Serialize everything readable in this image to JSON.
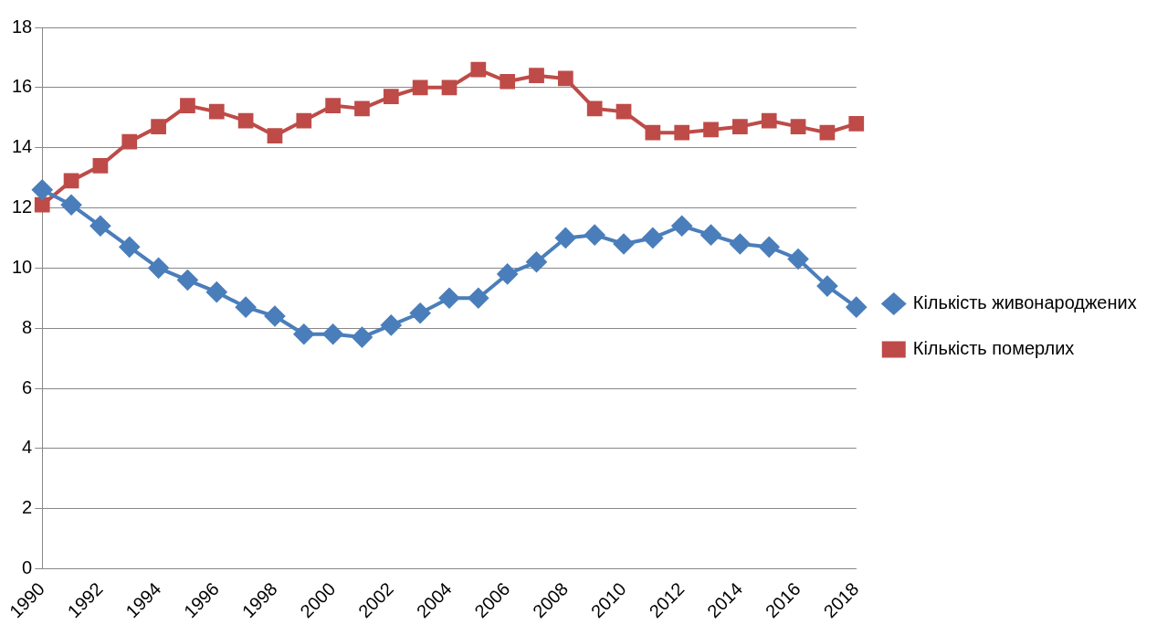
{
  "chart_data": {
    "type": "line",
    "categories": [
      "1990",
      null,
      "1992",
      null,
      "1994",
      null,
      "1996",
      null,
      "1998",
      null,
      "2000",
      null,
      "2002",
      null,
      "2004",
      null,
      "2006",
      null,
      "2008",
      null,
      "2010",
      null,
      "2012",
      null,
      "2014",
      null,
      "2016",
      null,
      "2018"
    ],
    "series": [
      {
        "name": "Кількість живонароджених",
        "color": "#4a7ebb",
        "marker": "diamond",
        "values": [
          12.6,
          12.1,
          11.4,
          10.7,
          10.0,
          9.6,
          9.2,
          8.7,
          8.4,
          7.8,
          7.8,
          7.7,
          8.1,
          8.5,
          9.0,
          9.0,
          9.8,
          10.2,
          11.0,
          11.1,
          10.8,
          11.0,
          11.4,
          11.1,
          10.8,
          10.7,
          10.3,
          9.4,
          8.7
        ]
      },
      {
        "name": "Кількість померлих",
        "color": "#be4b48",
        "marker": "square",
        "values": [
          12.1,
          12.9,
          13.4,
          14.2,
          14.7,
          15.4,
          15.2,
          14.9,
          14.4,
          14.9,
          15.4,
          15.3,
          15.7,
          16.0,
          16.0,
          16.6,
          16.2,
          16.4,
          16.3,
          15.3,
          15.2,
          14.5,
          14.5,
          14.6,
          14.7,
          14.9,
          14.7,
          14.5,
          14.8
        ]
      }
    ],
    "ylim": [
      0,
      18
    ],
    "yticks": [
      0,
      2,
      4,
      6,
      8,
      10,
      12,
      14,
      16,
      18
    ],
    "grid": "y",
    "legend": "right",
    "line_style": "solid"
  }
}
